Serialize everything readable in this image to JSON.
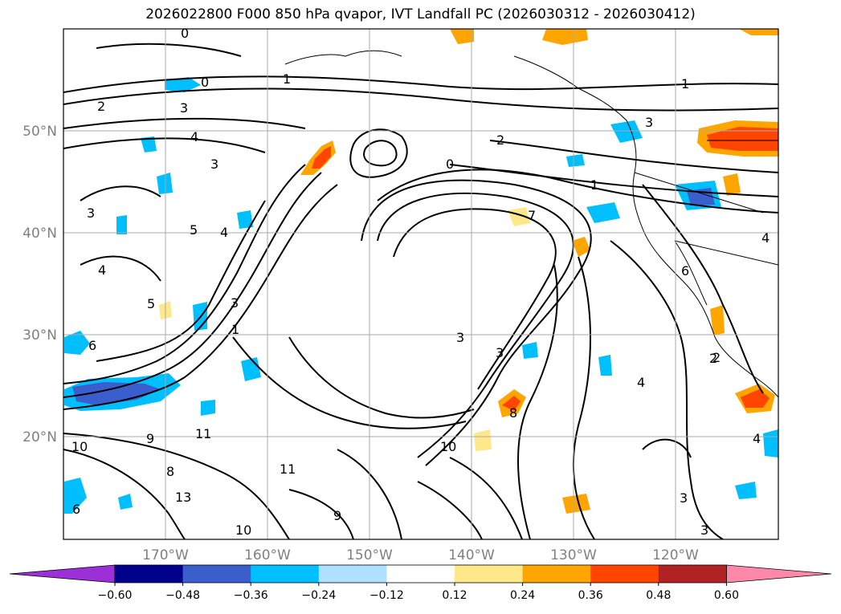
{
  "title": "2026022800 F000 850 hPa qvapor, IVT Landfall PC (2026030312 - 2026030412)",
  "map": {
    "lat_labels": [
      "50°N",
      "40°N",
      "30°N",
      "20°N"
    ],
    "lon_labels": [
      "170°W",
      "160°W",
      "150°W",
      "140°W",
      "130°W",
      "120°W"
    ],
    "tick_label_color": "#808080",
    "gridline_color": "#aaaaaa",
    "contour_labels": [
      "0",
      "0",
      "0",
      "1",
      "1",
      "1",
      "2",
      "2",
      "2",
      "3",
      "3",
      "3",
      "3",
      "3",
      "3",
      "4",
      "4",
      "4",
      "4",
      "4",
      "4",
      "5",
      "5",
      "6",
      "6",
      "6",
      "7",
      "10",
      "10",
      "10",
      "11",
      "11",
      "13",
      "9",
      "8",
      "3",
      "3",
      "1",
      "2",
      "3",
      "8",
      "9"
    ]
  },
  "colorbar": {
    "tick_labels": [
      "-0.60",
      "-0.48",
      "-0.36",
      "-0.24",
      "-0.12",
      "0.12",
      "0.24",
      "0.36",
      "0.48",
      "0.60"
    ],
    "colors": [
      "#9b30d9",
      "#00008b",
      "#3a5fcd",
      "#00bfff",
      "#b0e0ff",
      "#ffffff",
      "#ffe88a",
      "#ffa500",
      "#ff4500",
      "#b22222",
      "#ff88aa"
    ]
  }
}
